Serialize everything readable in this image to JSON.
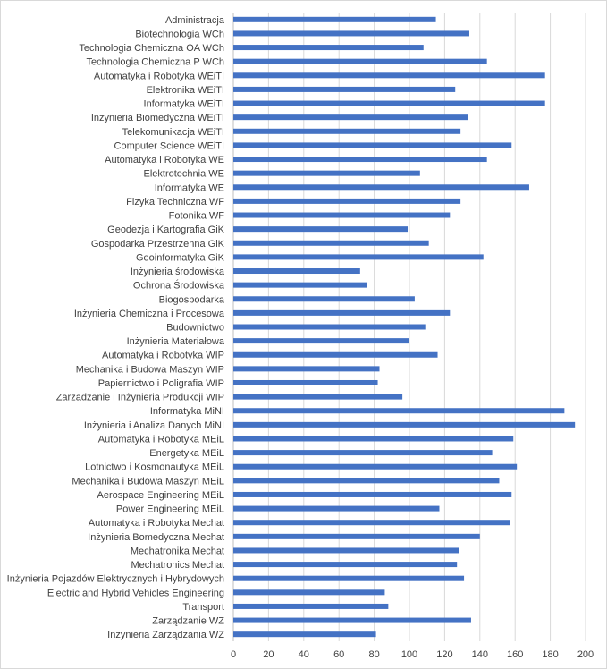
{
  "chart_data": {
    "type": "bar",
    "orientation": "horizontal",
    "categories": [
      "Administracja",
      "Biotechnologia WCh",
      "Technologia Chemiczna OA WCh",
      "Technologia Chemiczna P WCh",
      "Automatyka i Robotyka WEiTI",
      "Elektronika WEiTI",
      "Informatyka WEiTI",
      "Inżynieria Biomedyczna WEiTI",
      "Telekomunikacja WEiTI",
      "Computer Science WEiTI",
      "Automatyka i Robotyka WE",
      "Elektrotechnia WE",
      "Informatyka WE",
      "Fizyka Techniczna WF",
      "Fotonika WF",
      "Geodezja i Kartografia GiK",
      "Gospodarka Przestrzenna GiK",
      "Geoinformatyka GiK",
      "Inżynieria środowiska",
      "Ochrona Środowiska",
      "Biogospodarka",
      "Inżynieria Chemiczna i Procesowa",
      "Budownictwo",
      "Inżynieria Materiałowa",
      "Automatyka i Robotyka WIP",
      "Mechanika i Budowa Maszyn WIP",
      "Papiernictwo i Poligrafia WIP",
      "Zarządzanie i Inżynieria Produkcji WIP",
      "Informatyka MiNI",
      "Inżynieria i Analiza Danych MiNI",
      "Automatyka i Robotyka MEiL",
      "Energetyka MEiL",
      "Lotnictwo i Kosmonautyka MEiL",
      "Mechanika i Budowa Maszyn MEiL",
      "Aerospace Engineering MEiL",
      "Power Engineering MEiL",
      "Automatyka i Robotyka Mechat",
      "Inżynieria Bomedyczna Mechat",
      "Mechatronika Mechat",
      "Mechatronics Mechat",
      "Inżynieria Pojazdów Elektrycznych i Hybrydowych",
      "Electric and Hybrid Vehicles Engineering",
      "Transport",
      "Zarządzanie WZ",
      "Inżynieria Zarządzania WZ"
    ],
    "values": [
      115,
      134,
      108,
      144,
      177,
      126,
      177,
      133,
      129,
      158,
      144,
      106,
      168,
      129,
      123,
      99,
      111,
      142,
      72,
      76,
      103,
      123,
      109,
      100,
      116,
      83,
      82,
      96,
      188,
      194,
      159,
      147,
      161,
      151,
      158,
      117,
      157,
      140,
      128,
      127,
      131,
      86,
      88,
      135,
      81
    ],
    "xlim": [
      0,
      200
    ],
    "x_ticks": [
      0,
      20,
      40,
      60,
      80,
      100,
      120,
      140,
      160,
      180,
      200
    ],
    "grid": true,
    "bar_color": "#4472c4",
    "grid_color": "#d9d9d9",
    "title": "",
    "xlabel": "",
    "ylabel": ""
  }
}
